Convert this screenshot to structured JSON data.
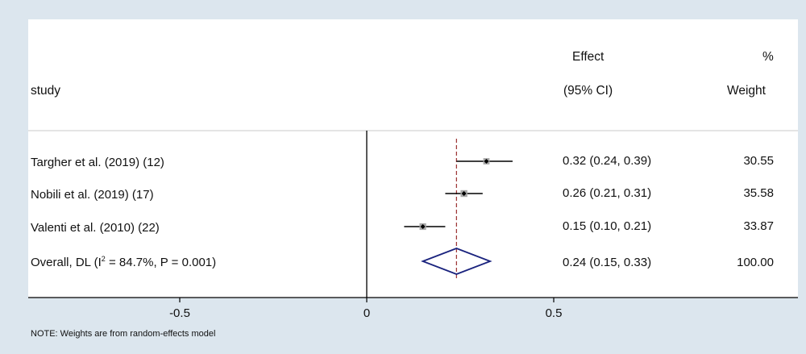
{
  "chart_data": {
    "type": "forest",
    "headers": {
      "study": "study",
      "effect_line1": "Effect",
      "effect_line2": "(95% CI)",
      "weight_line1": "%",
      "weight_line2": "Weight"
    },
    "studies": [
      {
        "label": "Targher et al.  (2019) (12)",
        "effect": 0.32,
        "ci": [
          0.24,
          0.39
        ],
        "effect_text": "0.32 (0.24, 0.39)",
        "weight": 30.55,
        "weight_text": "30.55"
      },
      {
        "label": "Nobili et al. (2019) (17)",
        "effect": 0.26,
        "ci": [
          0.21,
          0.31
        ],
        "effect_text": "0.26 (0.21, 0.31)",
        "weight": 35.58,
        "weight_text": "35.58"
      },
      {
        "label": "Valenti  et al. (2010) (22)",
        "effect": 0.15,
        "ci": [
          0.1,
          0.21
        ],
        "effect_text": "0.15 (0.10, 0.21)",
        "weight": 33.87,
        "weight_text": "33.87"
      }
    ],
    "overall": {
      "label_prefix": "Overall, DL (I",
      "label_sup": "2",
      "label_suffix": " = 84.7%,  P = 0.001)",
      "effect": 0.24,
      "ci": [
        0.15,
        0.33
      ],
      "effect_text": "0.24 (0.15, 0.33)",
      "weight_text": "100.00"
    },
    "x_axis": {
      "ticks": [
        -0.5,
        0,
        0.5
      ],
      "tick_labels": [
        "-0.5",
        "0",
        "0.5"
      ],
      "range": [
        -0.9,
        1.1
      ]
    },
    "reference_line": 0,
    "note": "NOTE: Weights are from random-effects model"
  },
  "colors": {
    "background": "#dce6ee",
    "panel": "#ffffff",
    "diamond": "#1a237e",
    "overall_line": "#9b3030",
    "ci_line": "#000000",
    "box": "#a8a8a8"
  }
}
